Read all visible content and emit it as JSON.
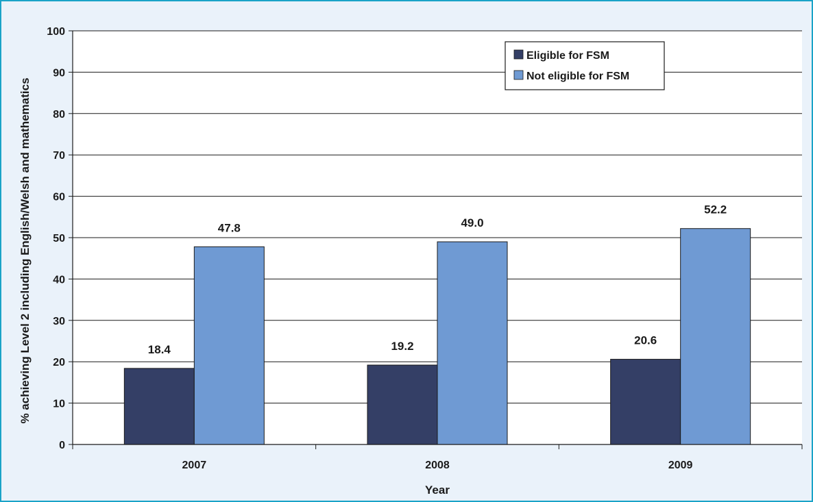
{
  "chart_data": {
    "type": "bar",
    "title": "",
    "xlabel": "Year",
    "ylabel": "% achieving Level 2 including English/Welsh and mathematics",
    "categories": [
      "2007",
      "2008",
      "2009"
    ],
    "series": [
      {
        "name": "Eligible for FSM",
        "color": "#343f66",
        "values": [
          18.4,
          19.2,
          20.6
        ],
        "labels": [
          "18.4",
          "19.2",
          "20.6"
        ]
      },
      {
        "name": "Not eligible for FSM",
        "color": "#6f9ad3",
        "values": [
          47.8,
          49.0,
          52.2
        ],
        "labels": [
          "47.8",
          "49.0",
          "52.2"
        ]
      }
    ],
    "ylim": [
      0,
      100
    ],
    "yticks": [
      "0",
      "10",
      "20",
      "30",
      "40",
      "50",
      "60",
      "70",
      "80",
      "90",
      "100"
    ],
    "grid": true,
    "legend": "top-right"
  }
}
